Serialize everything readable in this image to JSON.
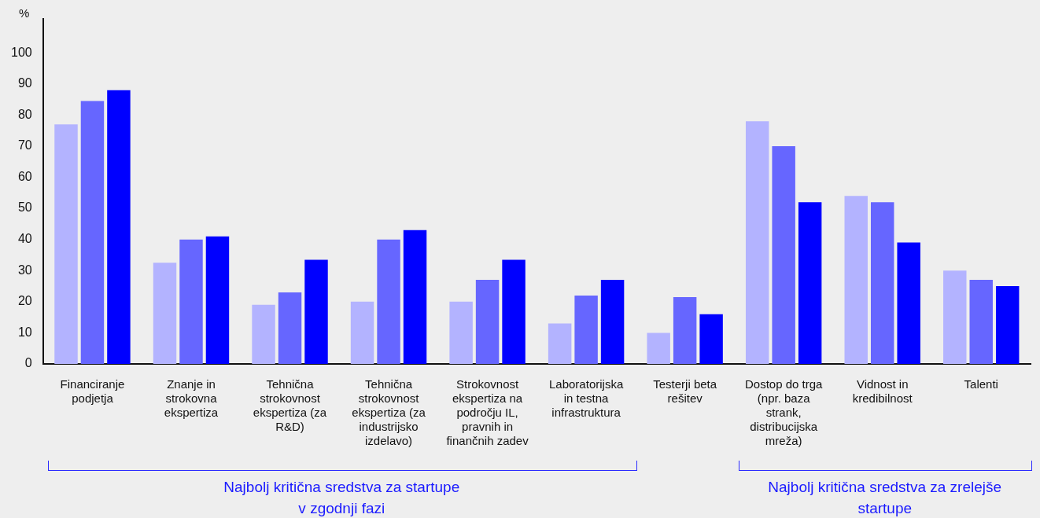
{
  "chart_data": {
    "type": "bar",
    "ylabel": "%",
    "categories": [
      "Financiranje podjetja",
      "Znanje in strokovna ekspertiza",
      "Tehnična strokovnost ekspertiza (za R&D)",
      "Tehnična strokovnost ekspertiza (za industrijsko izdelavo)",
      "Strokovnost ekspertiza na področju IL, pravnih in finančnih zadev",
      "Laboratorijska in testna infrastruktura",
      "Testerji beta rešitev",
      "Dostop do trga (npr. baza strank, distribucijska mreža)",
      "Vidnost in kredibilnost",
      "Talenti"
    ],
    "series": [
      {
        "color": "#b3b3ff",
        "values": [
          77,
          32.5,
          19,
          20,
          20,
          13,
          10,
          78,
          54,
          30
        ]
      },
      {
        "color": "#6666ff",
        "values": [
          84.5,
          40,
          23,
          40,
          27,
          22,
          21.5,
          70,
          52,
          27
        ]
      },
      {
        "color": "#0000ff",
        "values": [
          88,
          41,
          33.5,
          43,
          33.5,
          27,
          16,
          52,
          39,
          25
        ]
      }
    ],
    "ylim": [
      0,
      111
    ],
    "yticks": [
      0,
      10,
      20,
      30,
      40,
      50,
      60,
      70,
      80,
      90,
      100
    ],
    "grid": false,
    "legend": false,
    "annotations": [
      "Najbolj kritična sredstva za startupe v zgodnji fazi",
      "Najbolj kritična sredstva za zrelejše startupe"
    ]
  }
}
